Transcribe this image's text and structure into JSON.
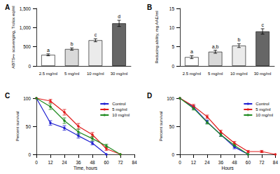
{
  "chart_data": [
    {
      "type": "bar",
      "title": "A",
      "ylabel": "ABTS•+ scavenging, Trolox eq/ml",
      "categories": [
        "2.5 mg/ml",
        "5 mg/ml",
        "10 mg/ml",
        "30 mg/ml"
      ],
      "values": [
        290,
        440,
        670,
        1110
      ],
      "errors": [
        25,
        30,
        40,
        80
      ],
      "annotations": [
        "a",
        "b",
        "c",
        "d"
      ],
      "colors": [
        "#ffffff",
        "#d9d9d9",
        "#ebebeb",
        "#666666"
      ],
      "ylim": [
        0,
        1500
      ],
      "yticks": [
        0,
        500,
        1000,
        1500
      ],
      "grid": false
    },
    {
      "type": "bar",
      "title": "B",
      "ylabel": "Reducing ability, mg AAE/ml",
      "categories": [
        "2.5 mg/ml",
        "5 mg/ml",
        "10 mg/ml",
        "30 mg/ml"
      ],
      "values": [
        2.3,
        3.7,
        5.3,
        9.0
      ],
      "errors": [
        0.4,
        0.4,
        0.5,
        0.7
      ],
      "annotations": [
        "a",
        "a,b",
        "b",
        "c"
      ],
      "colors": [
        "#ffffff",
        "#d9d9d9",
        "#ebebeb",
        "#666666"
      ],
      "ylim": [
        0,
        15
      ],
      "yticks": [
        0,
        5,
        10,
        15
      ],
      "grid": false
    },
    {
      "type": "line",
      "title": "C",
      "xlabel": "Time, hours",
      "ylabel": "Percent survival",
      "x": [
        0,
        12,
        24,
        36,
        48,
        60,
        72
      ],
      "series": [
        {
          "name": "Control",
          "color": "#1f1fd1",
          "values": [
            100,
            56,
            47,
            33,
            20,
            0,
            null
          ],
          "errors": [
            0,
            4,
            4,
            4,
            3,
            0,
            null
          ]
        },
        {
          "name": "5 mg/ml",
          "color": "#e01b1b",
          "values": [
            100,
            95,
            75,
            50,
            35,
            10,
            0
          ],
          "errors": [
            0,
            3,
            5,
            5,
            4,
            3,
            0
          ]
        },
        {
          "name": "10 mg/ml",
          "color": "#1f8a1f",
          "values": [
            100,
            85,
            60,
            40,
            28,
            15,
            0
          ],
          "errors": [
            0,
            5,
            5,
            5,
            4,
            3,
            0
          ]
        }
      ],
      "xlim": [
        0,
        84
      ],
      "xticks": [
        0,
        12,
        24,
        36,
        48,
        60,
        72,
        84
      ],
      "ylim": [
        0,
        100
      ],
      "yticks": [
        0,
        50,
        100
      ],
      "grid": false,
      "legend": "top-right",
      "marker": "circle"
    },
    {
      "type": "line",
      "title": "D",
      "xlabel": "Hours",
      "ylabel": "Percent survival",
      "x": [
        0,
        12,
        24,
        36,
        48,
        60,
        72,
        84
      ],
      "series": [
        {
          "name": "Control",
          "color": "#1f1fd1",
          "values": [
            100,
            84,
            58,
            35,
            13,
            0,
            null,
            null
          ],
          "errors": [
            0,
            3,
            3,
            3,
            3,
            0,
            null,
            null
          ]
        },
        {
          "name": "5 mg/ml",
          "color": "#e01b1b",
          "values": [
            100,
            86,
            67,
            40,
            20,
            5,
            5,
            0
          ],
          "errors": [
            0,
            3,
            3,
            3,
            3,
            2,
            2,
            0
          ]
        },
        {
          "name": "10 mg/ml",
          "color": "#1f8a1f",
          "values": [
            100,
            82,
            57,
            35,
            16,
            0,
            null,
            null
          ],
          "errors": [
            0,
            3,
            3,
            3,
            3,
            0,
            null,
            null
          ]
        }
      ],
      "xlim": [
        0,
        84
      ],
      "xticks": [
        0,
        12,
        24,
        36,
        48,
        60,
        72,
        84
      ],
      "ylim": [
        0,
        100
      ],
      "yticks": [
        0,
        50,
        100
      ],
      "grid": false,
      "legend": "top-right",
      "marker": "circle"
    }
  ]
}
